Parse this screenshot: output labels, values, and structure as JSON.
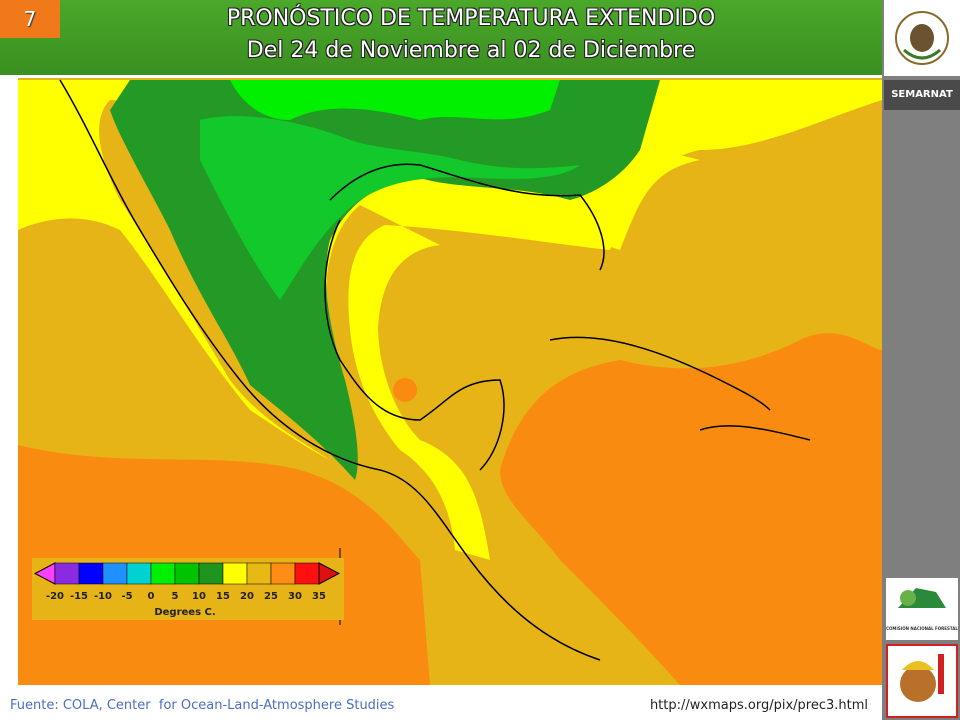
{
  "slide_number": "7",
  "header": {
    "title": "PRONÓSTICO DE TEMPERATURA EXTENDIDO",
    "subtitle": "Del 24 de Noviembre al 02 de Diciembre"
  },
  "sidebar": {
    "label": "SEMARNAT",
    "logo_text": "COMISIÓN NACIONAL FORESTAL"
  },
  "map": {
    "legend": {
      "labels": [
        -20,
        -15,
        -10,
        -5,
        0,
        5,
        10,
        15,
        20,
        25,
        30,
        35
      ],
      "colors": [
        "#ff40ff",
        "#8a2be2",
        "#0000ff",
        "#1e90ff",
        "#00d2d2",
        "#00ee00",
        "#00c400",
        "#1e961e",
        "#ffff00",
        "#e8b814",
        "#ff8c14",
        "#ff1010",
        "#e01010"
      ],
      "unit": "Degrees C."
    }
  },
  "footer": {
    "source": "Fuente: COLA, Center  for Ocean-Land-Atmosphere Studies",
    "url": "http://wxmaps.org/pix/prec3.html"
  }
}
